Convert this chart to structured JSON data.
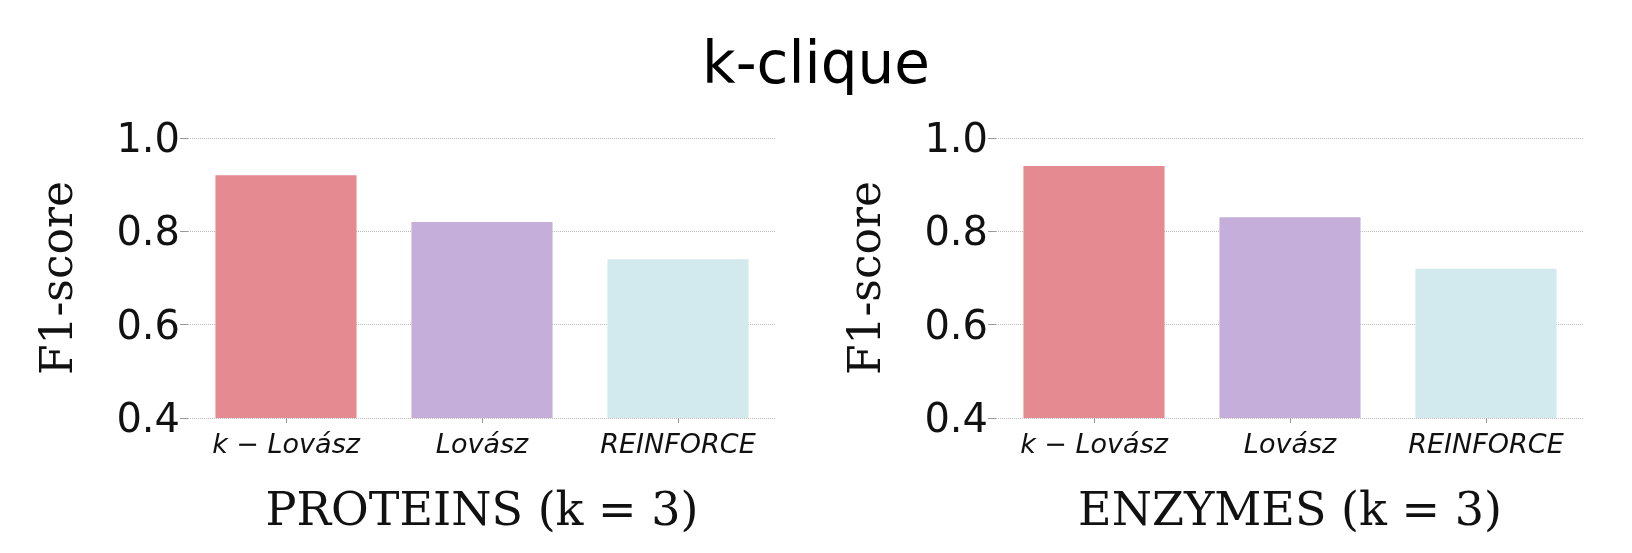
{
  "chart_data": [
    {
      "type": "bar",
      "title": "k-clique",
      "categories": [
        "k − Lovász",
        "Lovász",
        "REINFORCE"
      ],
      "values": [
        0.92,
        0.82,
        0.74
      ],
      "colors": [
        "#e68a92",
        "#c5aed9",
        "#d2e9ee"
      ],
      "xlabel": "PROTEINS (k = 3)",
      "ylabel": "F1-score",
      "ylim": [
        0.4,
        1.0
      ],
      "yticks": [
        0.4,
        0.6,
        0.8,
        {
          "value": 1,
          "label": "1.0"
        }
      ],
      "grid": "y"
    },
    {
      "type": "bar",
      "categories": [
        "k − Lovász",
        "Lovász",
        "REINFORCE"
      ],
      "values": [
        0.94,
        0.83,
        0.72
      ],
      "colors": [
        "#e68a92",
        "#c5aed9",
        "#d2e9ee"
      ],
      "xlabel": "ENZYMES (k = 3)",
      "ylabel": "F1-score",
      "ylim": [
        0.4,
        1.0
      ],
      "yticks": [
        0.4,
        0.6,
        0.8,
        {
          "value": 1,
          "label": "1.0"
        }
      ],
      "grid": "y"
    }
  ]
}
